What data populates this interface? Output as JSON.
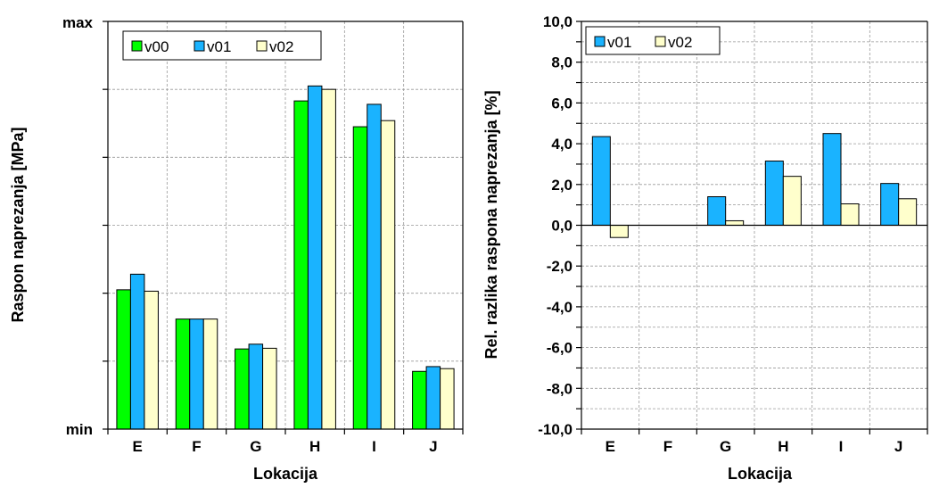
{
  "chart_data": [
    {
      "type": "bar",
      "ylabel": "Raspon naprezanja [MPa]",
      "xlabel": "Lokacija",
      "categories": [
        "E",
        "F",
        "G",
        "H",
        "I",
        "J"
      ],
      "y_tick_labels": {
        "max": "max",
        "min": "min"
      },
      "ylim": [
        0,
        6
      ],
      "grid": true,
      "legend_position": "top-left",
      "series": [
        {
          "name": "v00",
          "color": "#00ff00",
          "values": [
            2.05,
            1.62,
            1.18,
            4.83,
            4.45,
            0.85
          ]
        },
        {
          "name": "v01",
          "color": "#1ab3ff",
          "values": [
            2.28,
            1.62,
            1.25,
            5.05,
            4.78,
            0.92
          ]
        },
        {
          "name": "v02",
          "color": "#ffffcc",
          "values": [
            2.03,
            1.62,
            1.19,
            5.0,
            4.54,
            0.89
          ]
        }
      ]
    },
    {
      "type": "bar",
      "ylabel": "Rel. razlika raspona naprezanja [%]",
      "xlabel": "Lokacija",
      "categories": [
        "E",
        "F",
        "G",
        "H",
        "I",
        "J"
      ],
      "ylim": [
        -10,
        10
      ],
      "yticks": [
        "-10,0",
        "-8,0",
        "-6,0",
        "-4,0",
        "-2,0",
        "0,0",
        "2,0",
        "4,0",
        "6,0",
        "8,0",
        "10,0"
      ],
      "grid": true,
      "legend_position": "top-left",
      "series": [
        {
          "name": "v01",
          "color": "#1ab3ff",
          "values": [
            4.35,
            0.0,
            1.4,
            3.15,
            4.5,
            2.05
          ]
        },
        {
          "name": "v02",
          "color": "#ffffcc",
          "values": [
            -0.6,
            0.0,
            0.22,
            2.4,
            1.05,
            1.3
          ]
        }
      ]
    }
  ]
}
